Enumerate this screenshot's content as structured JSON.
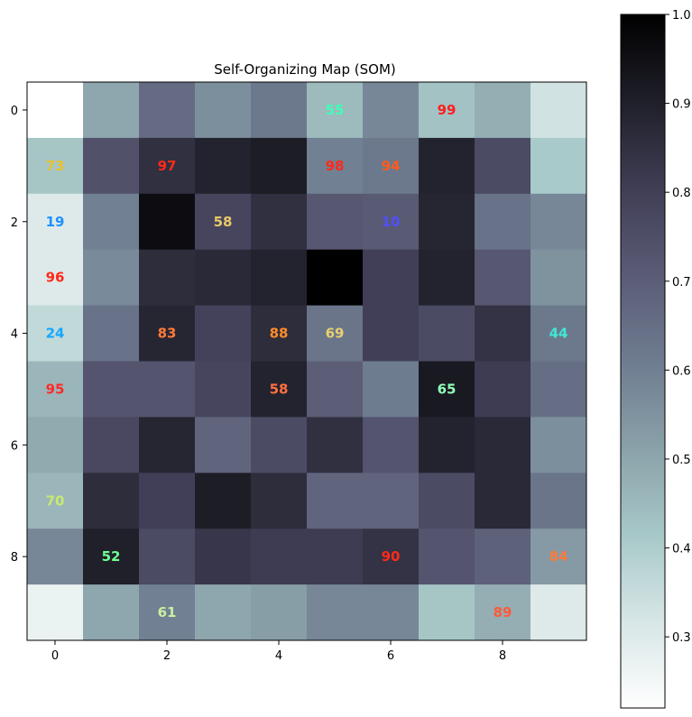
{
  "chart_data": {
    "type": "heatmap",
    "title": "Self-Organizing Map (SOM)",
    "colormap": "bone_r",
    "xlim": [
      -0.5,
      9.5
    ],
    "ylim": [
      -0.5,
      9.5
    ],
    "x_ticks": [
      "0",
      "2",
      "4",
      "6",
      "8"
    ],
    "y_ticks": [
      "0",
      "2",
      "4",
      "6",
      "8"
    ],
    "colorbar": {
      "range": [
        0.22,
        1.0
      ],
      "ticks": [
        "0.3",
        "0.4",
        "0.5",
        "0.6",
        "0.7",
        "0.8",
        "0.9",
        "1.0"
      ]
    },
    "matrix": [
      [
        0.22,
        0.5,
        0.66,
        0.56,
        0.62,
        0.45,
        0.58,
        0.43,
        0.48,
        0.33
      ],
      [
        0.42,
        0.74,
        0.85,
        0.89,
        0.91,
        0.6,
        0.62,
        0.89,
        0.76,
        0.41
      ],
      [
        0.3,
        0.6,
        0.96,
        0.78,
        0.85,
        0.72,
        0.71,
        0.88,
        0.64,
        0.58
      ],
      [
        0.3,
        0.57,
        0.86,
        0.87,
        0.89,
        1.0,
        0.8,
        0.89,
        0.72,
        0.55
      ],
      [
        0.36,
        0.64,
        0.88,
        0.79,
        0.86,
        0.63,
        0.8,
        0.76,
        0.84,
        0.62
      ],
      [
        0.46,
        0.73,
        0.73,
        0.78,
        0.89,
        0.7,
        0.61,
        0.92,
        0.81,
        0.65
      ],
      [
        0.49,
        0.77,
        0.88,
        0.68,
        0.76,
        0.85,
        0.73,
        0.89,
        0.87,
        0.56
      ],
      [
        0.46,
        0.86,
        0.8,
        0.91,
        0.86,
        0.68,
        0.68,
        0.76,
        0.87,
        0.63
      ],
      [
        0.58,
        0.9,
        0.76,
        0.83,
        0.81,
        0.81,
        0.84,
        0.73,
        0.69,
        0.53
      ],
      [
        0.27,
        0.5,
        0.6,
        0.5,
        0.52,
        0.58,
        0.58,
        0.42,
        0.48,
        0.3
      ]
    ],
    "labels": [
      {
        "row": 0,
        "col": 5,
        "text": "55",
        "color": "#3fffb8"
      },
      {
        "row": 0,
        "col": 7,
        "text": "99",
        "color": "#ff1e1e"
      },
      {
        "row": 1,
        "col": 0,
        "text": "73",
        "color": "#e8c030"
      },
      {
        "row": 1,
        "col": 2,
        "text": "97",
        "color": "#ff2a1a"
      },
      {
        "row": 1,
        "col": 5,
        "text": "98",
        "color": "#ff2a1a"
      },
      {
        "row": 1,
        "col": 6,
        "text": "94",
        "color": "#ff5a1e"
      },
      {
        "row": 2,
        "col": 0,
        "text": "19",
        "color": "#1e90ff"
      },
      {
        "row": 2,
        "col": 3,
        "text": "58",
        "color": "#e8c868"
      },
      {
        "row": 2,
        "col": 6,
        "text": "10",
        "color": "#5050ff"
      },
      {
        "row": 3,
        "col": 0,
        "text": "96",
        "color": "#ff2a1a"
      },
      {
        "row": 4,
        "col": 0,
        "text": "24",
        "color": "#12a8ff"
      },
      {
        "row": 4,
        "col": 2,
        "text": "83",
        "color": "#ff7a3a"
      },
      {
        "row": 4,
        "col": 4,
        "text": "88",
        "color": "#ff8c2a"
      },
      {
        "row": 4,
        "col": 5,
        "text": "69",
        "color": "#e8d070"
      },
      {
        "row": 4,
        "col": 9,
        "text": "44",
        "color": "#3fe8d8"
      },
      {
        "row": 5,
        "col": 0,
        "text": "95",
        "color": "#ff2a2a"
      },
      {
        "row": 5,
        "col": 4,
        "text": "58",
        "color": "#ff7040"
      },
      {
        "row": 5,
        "col": 7,
        "text": "65",
        "color": "#90ffb8"
      },
      {
        "row": 7,
        "col": 0,
        "text": "70",
        "color": "#c8e870"
      },
      {
        "row": 8,
        "col": 1,
        "text": "52",
        "color": "#70ff90"
      },
      {
        "row": 8,
        "col": 6,
        "text": "90",
        "color": "#ff2a1a"
      },
      {
        "row": 8,
        "col": 9,
        "text": "84",
        "color": "#ff7a3a"
      },
      {
        "row": 9,
        "col": 2,
        "text": "61",
        "color": "#c8f0a0"
      },
      {
        "row": 9,
        "col": 8,
        "text": "89",
        "color": "#ff5a3a"
      }
    ]
  }
}
